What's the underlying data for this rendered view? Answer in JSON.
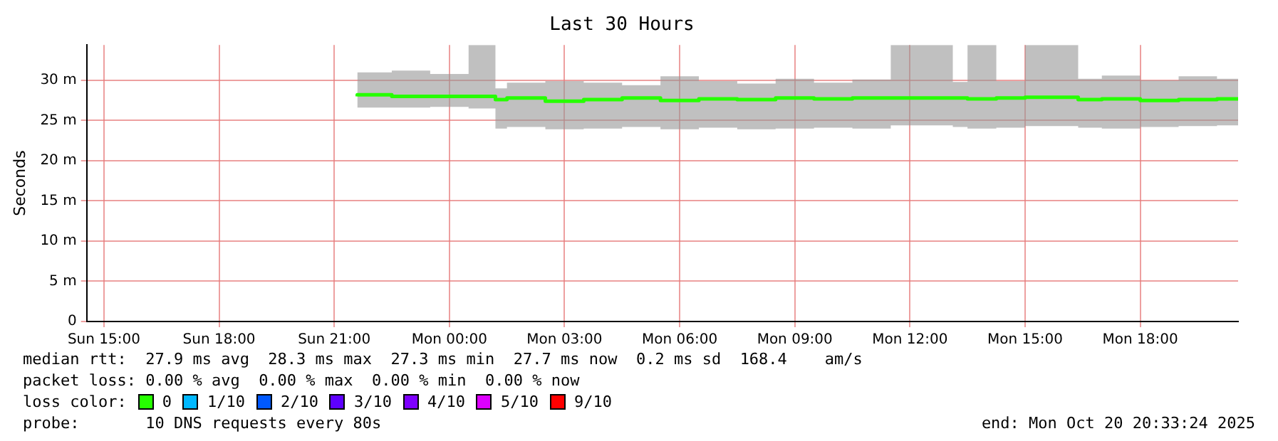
{
  "chart_data": {
    "type": "step",
    "title": "Last 30 Hours",
    "ylabel": "Seconds",
    "legend_title": "loss color:",
    "legend": "bottom",
    "grid": true,
    "x": [
      "2025-10-19T21:36",
      "2025-10-19T22:30",
      "2025-10-19T23:30",
      "2025-10-20T00:30",
      "2025-10-20T01:12",
      "2025-10-20T01:30",
      "2025-10-20T02:30",
      "2025-10-20T03:30",
      "2025-10-20T04:30",
      "2025-10-20T05:30",
      "2025-10-20T06:30",
      "2025-10-20T07:30",
      "2025-10-20T08:30",
      "2025-10-20T09:30",
      "2025-10-20T10:30",
      "2025-10-20T11:30",
      "2025-10-20T13:07",
      "2025-10-20T13:30",
      "2025-10-20T14:15",
      "2025-10-20T15:00",
      "2025-10-20T16:23",
      "2025-10-20T17:00",
      "2025-10-20T18:00",
      "2025-10-20T19:00",
      "2025-10-20T20:00",
      "2025-10-20T20:33"
    ],
    "xlim": [
      "2025-10-19T14:33",
      "2025-10-20T20:33"
    ],
    "xticks": [
      {
        "value": "2025-10-19T15:00",
        "label": "Sun 15:00"
      },
      {
        "value": "2025-10-19T18:00",
        "label": "Sun 18:00"
      },
      {
        "value": "2025-10-19T21:00",
        "label": "Sun 21:00"
      },
      {
        "value": "2025-10-20T00:00",
        "label": "Mon 00:00"
      },
      {
        "value": "2025-10-20T03:00",
        "label": "Mon 03:00"
      },
      {
        "value": "2025-10-20T06:00",
        "label": "Mon 06:00"
      },
      {
        "value": "2025-10-20T09:00",
        "label": "Mon 09:00"
      },
      {
        "value": "2025-10-20T12:00",
        "label": "Mon 12:00"
      },
      {
        "value": "2025-10-20T15:00",
        "label": "Mon 15:00"
      },
      {
        "value": "2025-10-20T18:00",
        "label": "Mon 18:00"
      }
    ],
    "ylim": [
      0,
      34.4
    ],
    "yticks": [
      0,
      {
        "value": 5,
        "label": "5 m"
      },
      {
        "value": 10,
        "label": "10 m"
      },
      {
        "value": 15,
        "label": "15 m"
      },
      {
        "value": 20,
        "label": "20 m"
      },
      {
        "value": 25,
        "label": "25 m"
      },
      {
        "value": 30,
        "label": "30 m"
      }
    ],
    "series": [
      {
        "name": "0",
        "color": "#26ff00",
        "values": [
          28.0,
          28.2,
          28.0,
          28.0,
          28.0,
          27.6,
          27.8,
          27.4,
          27.6,
          27.8,
          27.5,
          27.7,
          27.6,
          27.8,
          27.7,
          27.8,
          27.8,
          27.8,
          27.7,
          27.8,
          27.9,
          27.6,
          27.7,
          27.5,
          27.6,
          27.7
        ],
        "lower": [
          26.8,
          26.6,
          26.6,
          26.7,
          26.5,
          24.0,
          24.2,
          23.9,
          24.0,
          24.2,
          23.9,
          24.1,
          23.9,
          24.0,
          24.1,
          24.0,
          24.4,
          24.2,
          24.0,
          24.1,
          24.3,
          24.1,
          24.0,
          24.2,
          24.3,
          24.4
        ],
        "upper": [
          30.5,
          31.0,
          31.2,
          30.8,
          34.4,
          29.0,
          29.7,
          29.9,
          29.7,
          29.4,
          30.5,
          29.9,
          29.6,
          30.2,
          29.7,
          30.1,
          34.4,
          29.8,
          34.4,
          29.9,
          34.4,
          30.2,
          30.6,
          30.0,
          30.5,
          30.2
        ]
      },
      {
        "name": "1/10",
        "color": "#00b8ff",
        "values": [
          null,
          null,
          null,
          null,
          null,
          null,
          null,
          null,
          null,
          null,
          null,
          null,
          null,
          null,
          null,
          null,
          null,
          null,
          null,
          null,
          null,
          null,
          null,
          null,
          null,
          null
        ]
      },
      {
        "name": "2/10",
        "color": "#0059ff",
        "values": [
          null,
          null,
          null,
          null,
          null,
          null,
          null,
          null,
          null,
          null,
          null,
          null,
          null,
          null,
          null,
          null,
          null,
          null,
          null,
          null,
          null,
          null,
          null,
          null,
          null,
          null
        ]
      },
      {
        "name": "3/10",
        "color": "#5e00ff",
        "values": [
          null,
          null,
          null,
          null,
          null,
          null,
          null,
          null,
          null,
          null,
          null,
          null,
          null,
          null,
          null,
          null,
          null,
          null,
          null,
          null,
          null,
          null,
          null,
          null,
          null,
          null
        ]
      },
      {
        "name": "4/10",
        "color": "#7e00ff",
        "values": [
          null,
          null,
          null,
          null,
          null,
          null,
          null,
          null,
          null,
          null,
          null,
          null,
          null,
          null,
          null,
          null,
          null,
          null,
          null,
          null,
          null,
          null,
          null,
          null,
          null,
          null
        ]
      },
      {
        "name": "5/10",
        "color": "#dd00ff",
        "values": [
          null,
          null,
          null,
          null,
          null,
          null,
          null,
          null,
          null,
          null,
          null,
          null,
          null,
          null,
          null,
          null,
          null,
          null,
          null,
          null,
          null,
          null,
          null,
          null,
          null,
          null
        ]
      },
      {
        "name": "9/10",
        "color": "#ff0000",
        "values": [
          null,
          null,
          null,
          null,
          null,
          null,
          null,
          null,
          null,
          null,
          null,
          null,
          null,
          null,
          null,
          null,
          null,
          null,
          null,
          null,
          null,
          null,
          null,
          null,
          null,
          null
        ]
      }
    ],
    "annotations": [
      "median rtt:  27.9 ms avg  28.3 ms max  27.3 ms min  27.7 ms now  0.2 ms sd  168.4    am/s",
      "packet loss: 0.00 % avg  0.00 % max  0.00 % min  0.00 % now",
      "probe:       10 DNS requests every 80s",
      "end: Mon Oct 20 20:33:24 2025"
    ]
  }
}
